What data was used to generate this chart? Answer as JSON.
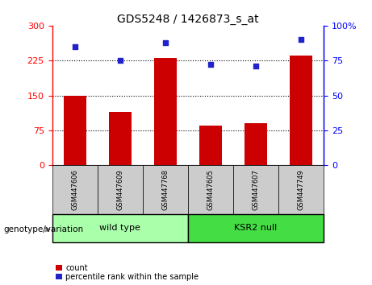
{
  "title": "GDS5248 / 1426873_s_at",
  "samples": [
    "GSM447606",
    "GSM447609",
    "GSM447768",
    "GSM447605",
    "GSM447607",
    "GSM447749"
  ],
  "counts": [
    150,
    115,
    230,
    85,
    90,
    235
  ],
  "percentiles": [
    85,
    75,
    88,
    72,
    71,
    90
  ],
  "bar_color": "#CC0000",
  "dot_color": "#2222CC",
  "left_ylim": [
    0,
    300
  ],
  "right_ylim": [
    0,
    100
  ],
  "left_yticks": [
    0,
    75,
    150,
    225,
    300
  ],
  "right_yticks": [
    0,
    25,
    50,
    75,
    100
  ],
  "right_yticklabels": [
    "0",
    "25",
    "50",
    "75",
    "100%"
  ],
  "hline_values": [
    75,
    150,
    225
  ],
  "wildtype_label": "wild type",
  "ksr2_label": "KSR2 null",
  "wildtype_color": "#AAFFAA",
  "ksr2_color": "#44DD44",
  "sample_box_color": "#CCCCCC",
  "genotype_label": "genotype/variation",
  "legend_count": "count",
  "legend_pct": "percentile rank within the sample",
  "bar_width": 0.5,
  "n_wildtype": 3,
  "n_ksr2": 3
}
